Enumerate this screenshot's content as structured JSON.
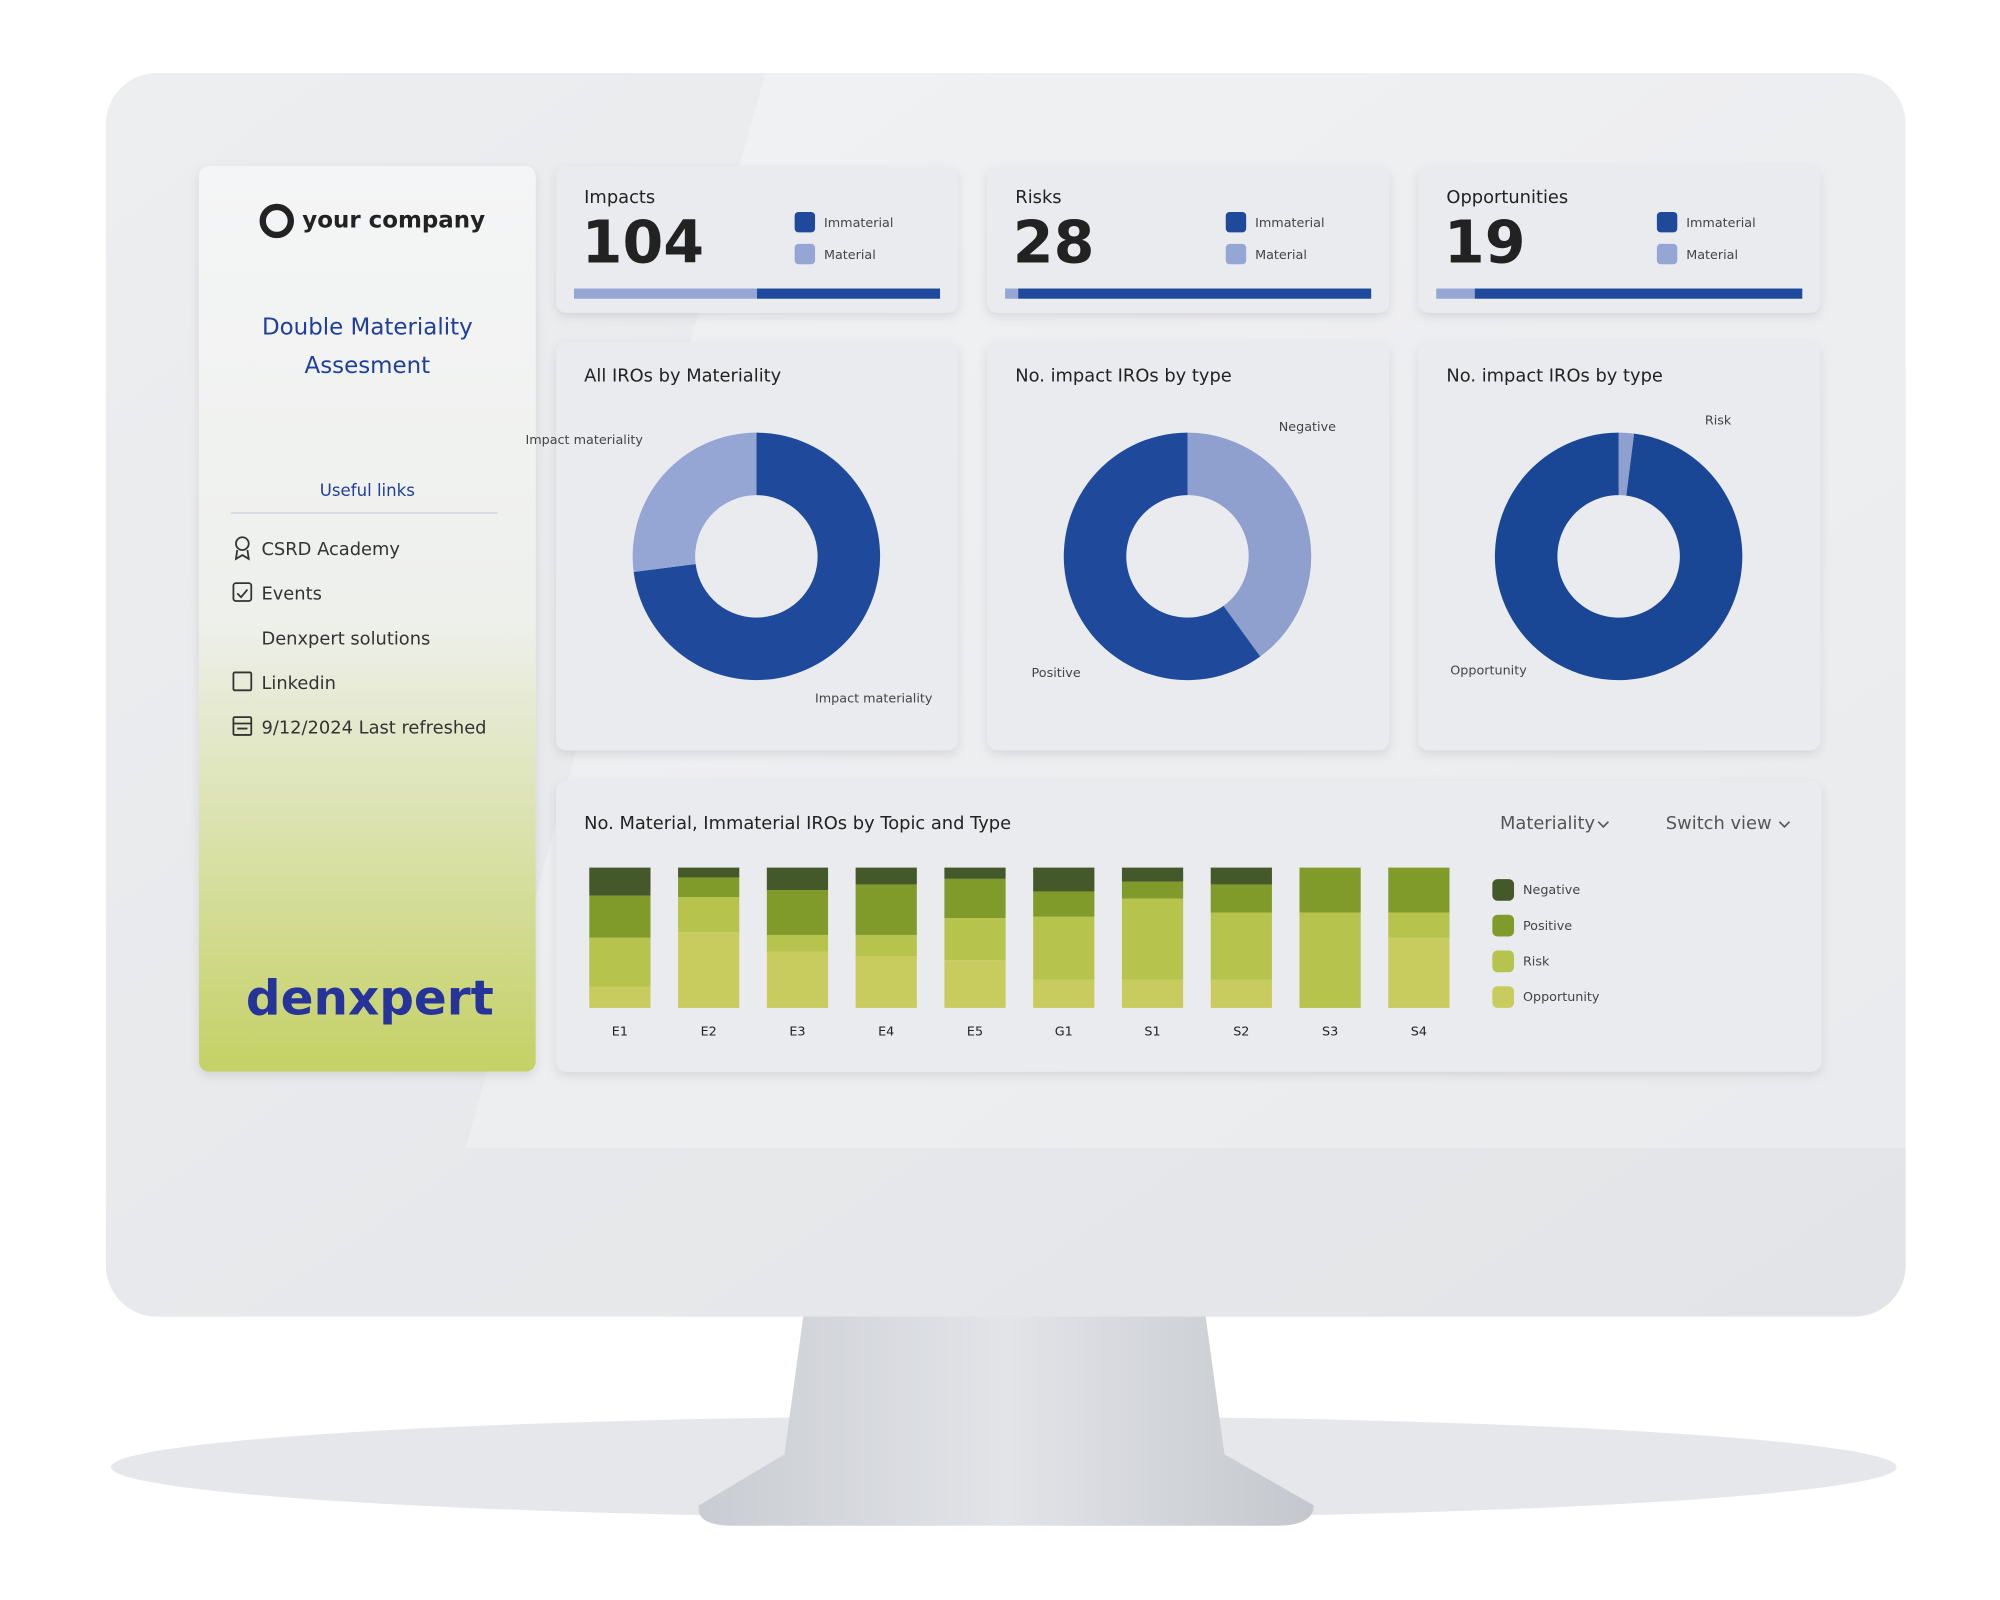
{
  "sidebar": {
    "company": "your company",
    "title_lines": [
      "Double Materiality",
      "Assesment"
    ],
    "links_heading": "Useful links",
    "links": [
      "CSRD Academy",
      "Events",
      "Denxpert solutions",
      "Linkedin",
      "9/12/2024 Last refreshed"
    ],
    "brand": "denxpert"
  },
  "kpis": [
    {
      "label": "Impacts",
      "value": 104,
      "series": [
        {
          "name": "Immaterial",
          "color": "#1f4a9c",
          "value": 52
        },
        {
          "name": "Material",
          "color": "#96a6d4",
          "value": 52
        }
      ]
    },
    {
      "label": "Risks",
      "value": 28,
      "series": [
        {
          "name": "Immaterial",
          "color": "#1f4a9c",
          "value": 27
        },
        {
          "name": "Material",
          "color": "#96a6d4",
          "value": 1
        }
      ]
    },
    {
      "label": "Opportunities",
      "value": 19,
      "series": [
        {
          "name": "Immaterial",
          "color": "#1f4a9c",
          "value": 17
        },
        {
          "name": "Material",
          "color": "#96a6d4",
          "value": 2
        }
      ]
    }
  ],
  "donuts": [
    {
      "type": "pie",
      "title": "All IROs by Materiality",
      "slices": [
        {
          "label": "Impact materiality",
          "value": 73,
          "color": "#1f4a9c"
        },
        {
          "label": "Impact materiality",
          "value": 27,
          "color": "#96a6d4"
        }
      ]
    },
    {
      "type": "pie",
      "title": "No. impact IROs by type",
      "slices": [
        {
          "label": "Negative",
          "value": 40,
          "color": "#8f9fce"
        },
        {
          "label": "Positive",
          "value": 60,
          "color": "#1f4a9c"
        }
      ]
    },
    {
      "type": "pie",
      "title": "No. impact IROs by type",
      "slices": [
        {
          "label": "Risk",
          "value": 2,
          "color": "#8f9fce"
        },
        {
          "label": "Opportunity",
          "value": 98,
          "color": "#1a4696"
        }
      ]
    }
  ],
  "bar_chart": {
    "type": "bar",
    "title": "No. Material, Immaterial IROs by Topic and Type",
    "controls": [
      "Materiality",
      "Switch view"
    ],
    "categories": [
      "E1",
      "E2",
      "E3",
      "E4",
      "E5",
      "G1",
      "S1",
      "S2",
      "S3",
      "S4"
    ],
    "series": [
      {
        "name": "Negative",
        "color": "#44582a",
        "values": [
          20,
          7,
          16,
          12,
          8,
          17,
          10,
          12,
          0,
          0
        ]
      },
      {
        "name": "Positive",
        "color": "#819b2a",
        "values": [
          30,
          14,
          32,
          36,
          28,
          18,
          12,
          20,
          32,
          32
        ]
      },
      {
        "name": "Risk",
        "color": "#b6c34c",
        "values": [
          35,
          25,
          12,
          15,
          30,
          45,
          58,
          48,
          68,
          18
        ]
      },
      {
        "name": "Opportunity",
        "color": "#c8cc5e",
        "values": [
          15,
          54,
          40,
          37,
          34,
          20,
          20,
          20,
          0,
          50
        ]
      }
    ]
  }
}
